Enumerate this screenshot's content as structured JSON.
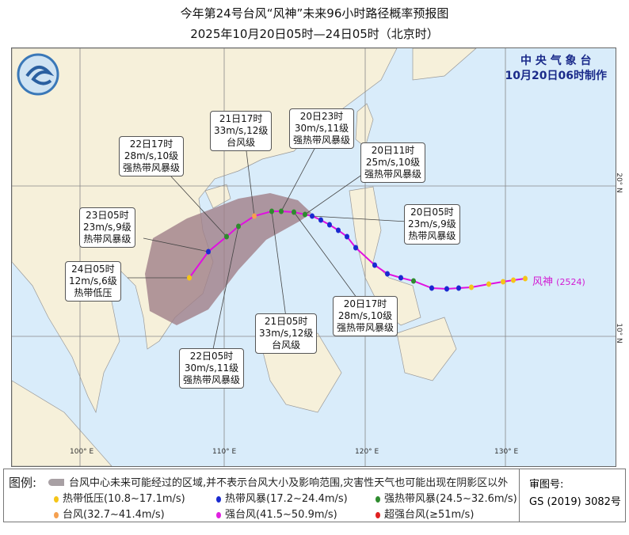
{
  "title": "今年第24号台风“风神”未来96小时路径概率预报图",
  "subtitle": "2025年10月20日05时—24日05时（北京时）",
  "org": {
    "name": "中 央 气 象 台",
    "made": "10月20日06时制作"
  },
  "storm": {
    "name": "风神",
    "code": "(2524)"
  },
  "grid": {
    "lon": [
      "100° E",
      "110° E",
      "120° E",
      "130° E"
    ],
    "lat": [
      "20° N",
      "10° N"
    ]
  },
  "forecast_points": [
    {
      "time": "20日05时",
      "wind": "23m/s,9级",
      "level": "热带风暴级"
    },
    {
      "time": "20日11时",
      "wind": "25m/s,10级",
      "level": "强热带风暴级"
    },
    {
      "time": "20日17时",
      "wind": "28m/s,10级",
      "level": "强热带风暴级"
    },
    {
      "time": "20日23时",
      "wind": "30m/s,11级",
      "level": "强热带风暴级"
    },
    {
      "time": "21日05时",
      "wind": "33m/s,12级",
      "level": "台风级"
    },
    {
      "time": "21日17时",
      "wind": "33m/s,12级",
      "level": "台风级"
    },
    {
      "time": "22日05时",
      "wind": "30m/s,11级",
      "level": "强热带风暴级"
    },
    {
      "time": "22日17时",
      "wind": "28m/s,10级",
      "level": "强热带风暴级"
    },
    {
      "time": "23日05时",
      "wind": "23m/s,9级",
      "level": "热带风暴级"
    },
    {
      "time": "24日05时",
      "wind": "12m/s,6级",
      "level": "热带低压"
    }
  ],
  "legend": {
    "head": "图例:",
    "cone": "台风中心未来可能经过的区域,并不表示台风大小及影响范围,灾害性天气也可能出现在阴影区以外",
    "items": [
      {
        "label": "热带低压(10.8~17.1m/s)",
        "color": "#f5c518"
      },
      {
        "label": "热带风暴(17.2~24.4m/s)",
        "color": "#1a2ad0"
      },
      {
        "label": "强热带风暴(24.5~32.6m/s)",
        "color": "#2e8b2e"
      },
      {
        "label": "台风(32.7~41.4m/s)",
        "color": "#f5a050"
      },
      {
        "label": "强台风(41.5~50.9m/s)",
        "color": "#e020e0"
      },
      {
        "label": "超强台风(≥51m/s)",
        "color": "#e02020"
      }
    ]
  },
  "review": {
    "label": "审图号:",
    "code": "GS (2019) 3082号"
  },
  "colors": {
    "ocean": "#d9ecfa",
    "land": "#f6f0da",
    "cone": "#a08088",
    "track": "#e010e0"
  }
}
